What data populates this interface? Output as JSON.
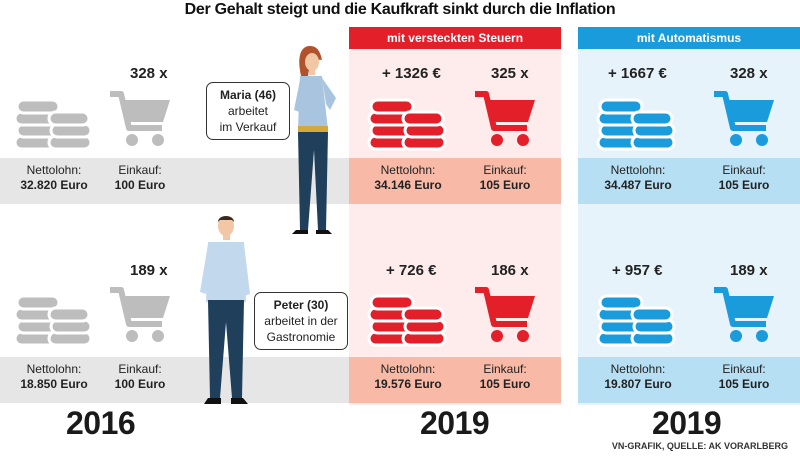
{
  "title": "Der Gehalt steigt und die Kaufkraft sinkt durch die Inflation",
  "colors": {
    "red": "#e3202a",
    "blue": "#1a9cdc",
    "gray": "#bdbdbd",
    "red_bg": "#fdeceb",
    "blue_bg": "#e6f3fb",
    "red_band": "#f8b9a6",
    "blue_band": "#b6dff4",
    "gray_band": "#e6e6e6"
  },
  "headers": {
    "steuern": "mit versteckten Steuern",
    "automatismus": "mit Automatismus"
  },
  "persons": {
    "maria": {
      "name": "Maria (46)",
      "line1": "arbeitet",
      "line2": "im Verkauf"
    },
    "peter": {
      "name": "Peter (30)",
      "line1": "arbeitet in der",
      "line2": "Gastronomie"
    }
  },
  "labels": {
    "nettolohn": "Nettolohn:",
    "einkauf": "Einkauf:"
  },
  "rows": {
    "maria": {
      "y2016": {
        "count": "328 x",
        "nettolohn": "32.820 Euro",
        "einkauf": "100 Euro"
      },
      "steuern": {
        "increase": "+ 1326 €",
        "count": "325 x",
        "nettolohn": "34.146 Euro",
        "einkauf": "105 Euro"
      },
      "auto": {
        "increase": "+ 1667 €",
        "count": "328 x",
        "nettolohn": "34.487 Euro",
        "einkauf": "105 Euro"
      }
    },
    "peter": {
      "y2016": {
        "count": "189 x",
        "nettolohn": "18.850 Euro",
        "einkauf": "100 Euro"
      },
      "steuern": {
        "increase": "+ 726 €",
        "count": "186 x",
        "nettolohn": "19.576 Euro",
        "einkauf": "105 Euro"
      },
      "auto": {
        "increase": "+ 957 €",
        "count": "189 x",
        "nettolohn": "19.807 Euro",
        "einkauf": "105 Euro"
      }
    }
  },
  "years": {
    "y2016": "2016",
    "y2019a": "2019",
    "y2019b": "2019"
  },
  "source": "VN-GRAFIK, QUELLE: AK VORARLBERG",
  "icons": {
    "coins": "coin-stack-icon",
    "cart": "shopping-cart-icon"
  }
}
